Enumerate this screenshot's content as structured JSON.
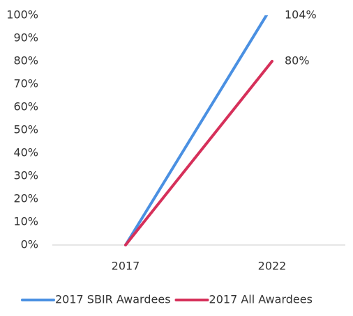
{
  "chart_data": {
    "type": "line",
    "categories": [
      "2017",
      "2022"
    ],
    "series": [
      {
        "name": "2017 SBIR Awardees",
        "color": "#4a90e2",
        "values": [
          0,
          104
        ],
        "value_labels": [
          null,
          "104%"
        ]
      },
      {
        "name": "2017 All Awardees",
        "color": "#d6305a",
        "values": [
          0,
          80
        ],
        "value_labels": [
          null,
          "80%"
        ]
      }
    ],
    "ylim": [
      0,
      100
    ],
    "yticks": [
      {
        "value": 0,
        "label": "0%"
      },
      {
        "value": 10,
        "label": "10%"
      },
      {
        "value": 20,
        "label": "20%"
      },
      {
        "value": 30,
        "label": "30%"
      },
      {
        "value": 40,
        "label": "40%"
      },
      {
        "value": 50,
        "label": "50%"
      },
      {
        "value": 60,
        "label": "60%"
      },
      {
        "value": 70,
        "label": "70%"
      },
      {
        "value": 80,
        "label": "80%"
      },
      {
        "value": 90,
        "label": "90%"
      },
      {
        "value": 100,
        "label": "100%"
      }
    ],
    "legend": "bottom"
  }
}
